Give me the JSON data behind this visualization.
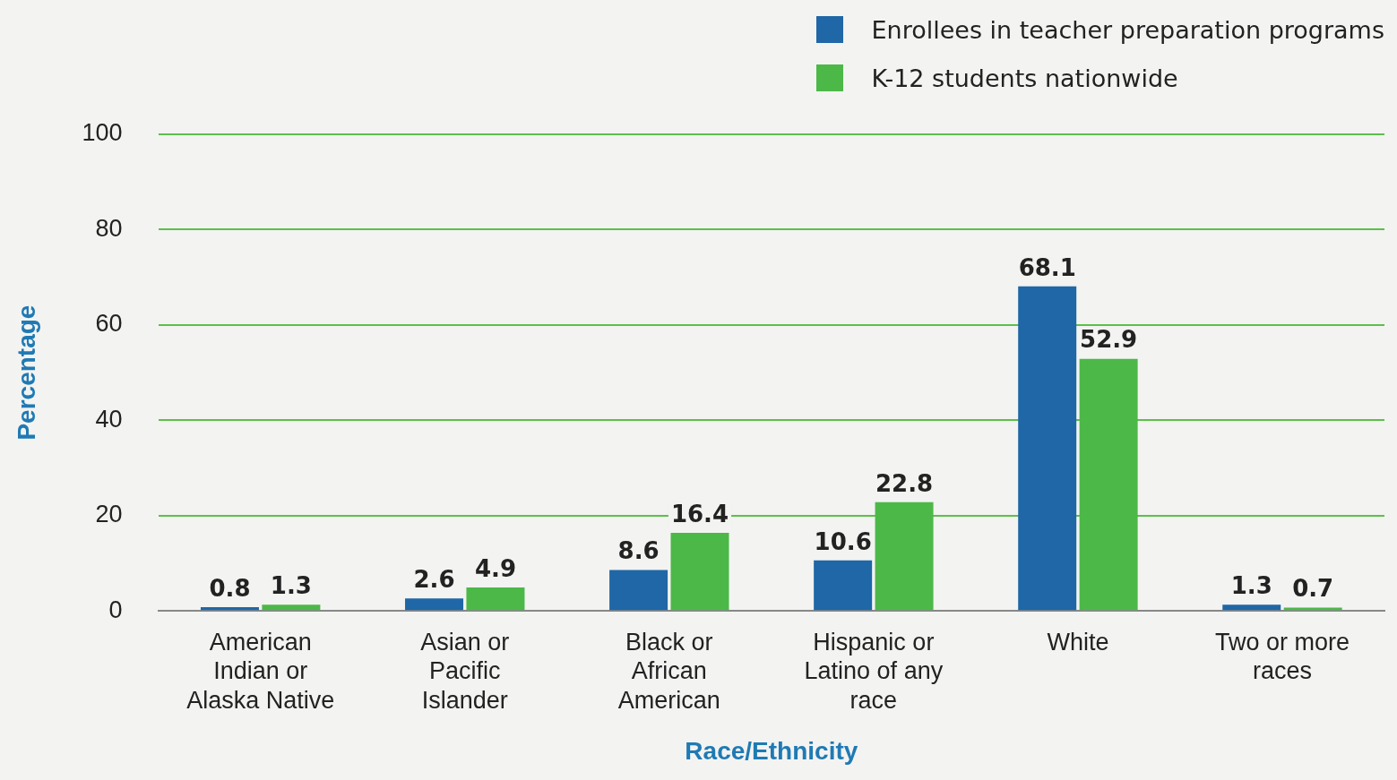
{
  "chart_data": {
    "type": "bar",
    "xlabel": "Race/Ethnicity",
    "ylabel": "Percentage",
    "categories": [
      "American Indian or Alaska Native",
      "Asian or Pacific Islander",
      "Black or African American",
      "Hispanic or Latino of any race",
      "White",
      "Two or more races"
    ],
    "series": [
      {
        "name": "Enrollees in teacher preparation programs",
        "color": "#1f67a6",
        "values": [
          0.8,
          2.6,
          8.6,
          10.6,
          68.1,
          1.3
        ]
      },
      {
        "name": "K-12 students nationwide",
        "color": "#4cb848",
        "values": [
          1.3,
          4.9,
          16.4,
          22.8,
          52.9,
          0.7
        ]
      }
    ],
    "ylim": [
      0,
      100
    ],
    "yticks": [
      0,
      20,
      40,
      60,
      80,
      100
    ],
    "grid": "y",
    "legend": "top right",
    "data_labels": true
  }
}
